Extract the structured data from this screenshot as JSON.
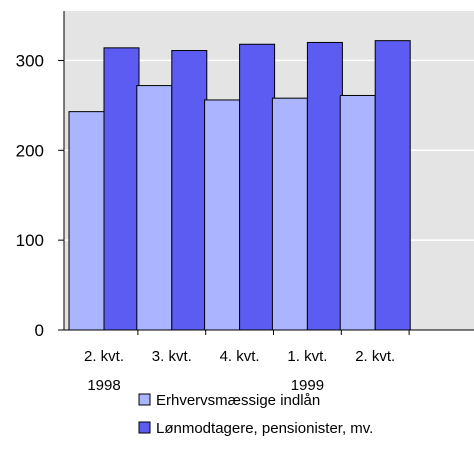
{
  "chart_data": {
    "type": "bar",
    "title": "",
    "xlabel": "",
    "ylabel": "",
    "categories": [
      [
        "2. kvt.",
        "1998"
      ],
      [
        "3. kvt.",
        ""
      ],
      [
        "4. kvt.",
        ""
      ],
      [
        "1. kvt.",
        "1999"
      ],
      [
        "2. kvt.",
        ""
      ]
    ],
    "series": [
      {
        "name": "Erhvervsmæssige indlån",
        "values": [
          243,
          272,
          256,
          258,
          261
        ],
        "color": "#aab4ff"
      },
      {
        "name": "Lønmodtagere, pensionister, mv.",
        "values": [
          314,
          311,
          318,
          320,
          322
        ],
        "color": "#5c5cf2"
      }
    ],
    "ylim": [
      0,
      355
    ],
    "yticks": [
      0,
      100,
      200,
      300
    ],
    "grid": true,
    "plot_background": "#e4e4e4",
    "grid_color": "#ffffff",
    "legend_position": "bottom"
  }
}
